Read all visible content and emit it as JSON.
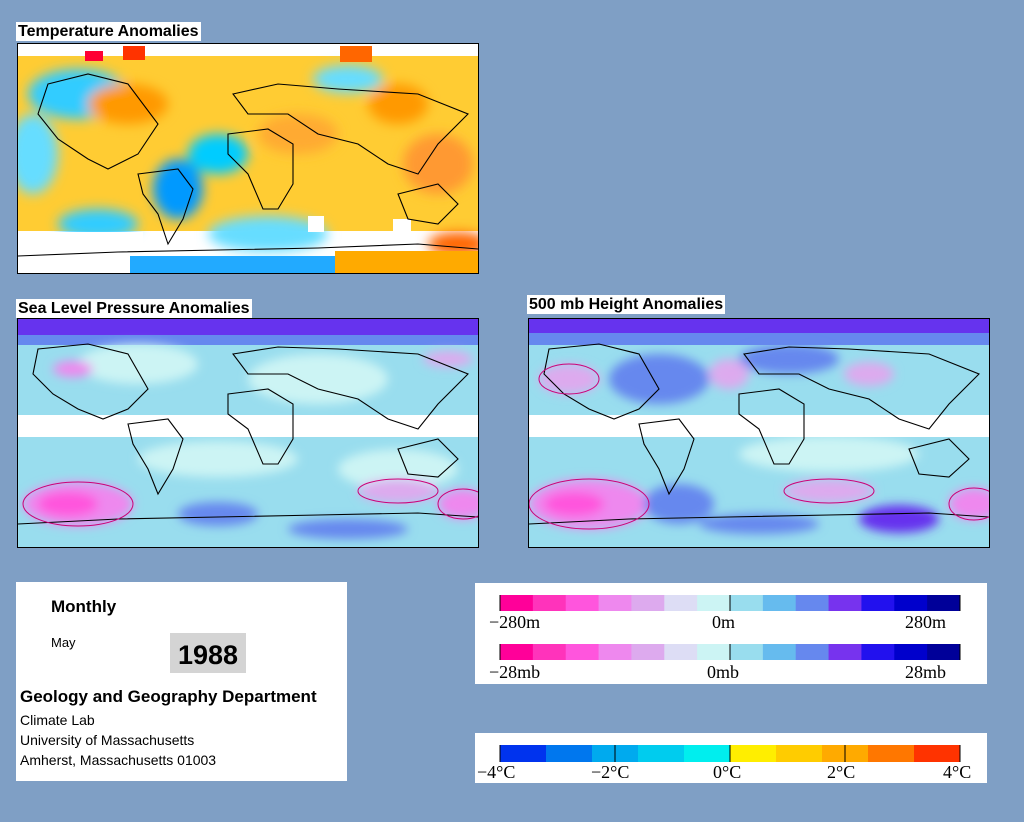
{
  "panels": {
    "temperature": {
      "title": "Temperature Anomalies"
    },
    "slp": {
      "title": "Sea Level Pressure Anomalies"
    },
    "height500": {
      "title": "500 mb Height Anomalies"
    }
  },
  "info": {
    "period": "Monthly",
    "month": "May",
    "year": "1988",
    "department": "Geology and Geography Department",
    "lines": [
      "Climate Lab",
      "University of Massachusetts",
      "Amherst, Massachusetts 01003"
    ]
  },
  "legends": {
    "height": {
      "labels": [
        "−280m",
        "0m",
        "280m"
      ],
      "colors": [
        "#ff0099",
        "#ff33bb",
        "#ff55dd",
        "#ee88ee",
        "#ddaaee",
        "#ddddf5",
        "#ccf4f4",
        "#99ddee",
        "#66bbee",
        "#6688ee",
        "#7733ee",
        "#2211ee",
        "#0000cc",
        "#000099"
      ]
    },
    "pressure": {
      "labels": [
        "−28mb",
        "0mb",
        "28mb"
      ],
      "colors": [
        "#ff0099",
        "#ff33bb",
        "#ff55dd",
        "#ee88ee",
        "#ddaaee",
        "#ddddf5",
        "#ccf4f4",
        "#99ddee",
        "#66bbee",
        "#6688ee",
        "#7733ee",
        "#2211ee",
        "#0000cc",
        "#000099"
      ]
    },
    "temperature": {
      "labels": [
        "−4°C",
        "−2°C",
        "0°C",
        "2°C",
        "4°C"
      ],
      "colors": [
        "#0033ee",
        "#0077ee",
        "#00aaee",
        "#00ccee",
        "#00eeee",
        "#ffee00",
        "#ffcc00",
        "#ffaa00",
        "#ff7700",
        "#ff3300"
      ]
    }
  }
}
